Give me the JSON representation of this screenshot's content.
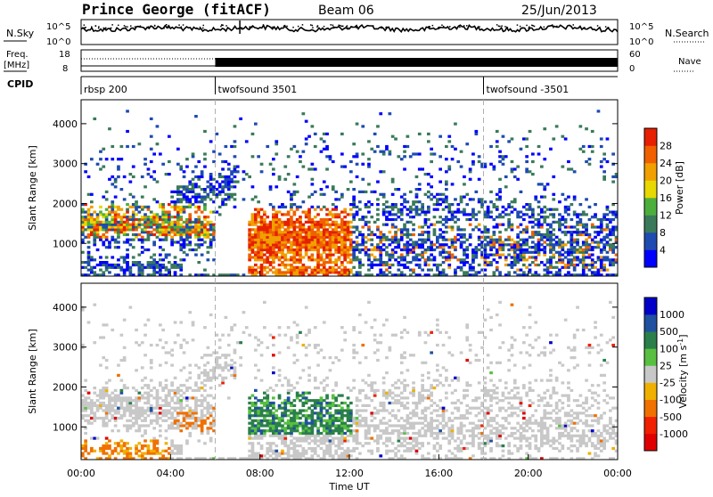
{
  "header": {
    "station": "Prince George (fitACF)",
    "beam": "Beam 06",
    "date": "25/Jun/2013"
  },
  "top_panels": {
    "nsky_label": "N.Sky",
    "nsky_ticks": [
      "10^5",
      "10^0"
    ],
    "nsearch_label": "N.Search",
    "nsearch_ticks": [
      "10^5",
      "10^0"
    ],
    "freq_label": "Freq.",
    "freq_unit": "[MHz]",
    "freq_ticks": [
      "18",
      "8"
    ],
    "nave_label": "Nave",
    "nave_ticks": [
      "60",
      "0"
    ],
    "cpid_label": "CPID",
    "cpid_segments": [
      {
        "label": "rbsp 200",
        "start_hour": 0
      },
      {
        "label": "twofsound 3501",
        "start_hour": 6
      },
      {
        "label": "twofsound -3501",
        "start_hour": 18
      }
    ]
  },
  "chart_data": [
    {
      "type": "heatmap",
      "title": "",
      "ylabel": "Slant Range [km]",
      "ylim": [
        180,
        4600
      ],
      "yticks": [
        "1000",
        "2000",
        "3000",
        "4000"
      ],
      "xlim_hours": [
        0,
        24
      ],
      "colorbar": {
        "label": "Power [dB]",
        "ticks": [
          "4",
          "8",
          "12",
          "16",
          "20",
          "24",
          "28"
        ],
        "colors": [
          "#0000ff",
          "#1e4bb0",
          "#3a7a5a",
          "#4caf3c",
          "#e6d800",
          "#f0a000",
          "#f06000",
          "#e62000"
        ]
      },
      "echo_bands": [
        {
          "hours": [
            0.0,
            5.5
          ],
          "range_km": [
            1100,
            2000
          ],
          "level": "high"
        },
        {
          "hours": [
            0.0,
            4.0
          ],
          "range_km": [
            300,
            600
          ],
          "level": "medium"
        },
        {
          "hours": [
            4.0,
            6.0
          ],
          "range_km": [
            1300,
            1600
          ],
          "level": "high"
        },
        {
          "hours": [
            8.0,
            12.0
          ],
          "range_km": [
            300,
            1800
          ],
          "level": "very high"
        },
        {
          "hours": [
            12.0,
            24.0
          ],
          "range_km": [
            300,
            1500
          ],
          "level": "low"
        }
      ]
    },
    {
      "type": "heatmap",
      "title": "",
      "ylabel": "Slant Range [km]",
      "ylim": [
        180,
        4600
      ],
      "yticks": [
        "1000",
        "2000",
        "3000",
        "4000"
      ],
      "xlim_hours": [
        0,
        24
      ],
      "colorbar": {
        "label": "Velocity [m s^-1]",
        "ticks": [
          "1000",
          "500",
          "100",
          "25",
          "-25",
          "-100",
          "-500",
          "-1000"
        ],
        "colors": [
          "#0000c8",
          "#2050a0",
          "#2a7f4a",
          "#58c040",
          "#c8c8c8",
          "#f0b000",
          "#f07000",
          "#f02000",
          "#e00000"
        ]
      },
      "echo_bands": [
        {
          "hours": [
            0.0,
            6.0
          ],
          "range_km": [
            1100,
            2000
          ],
          "velocity": "near zero"
        },
        {
          "hours": [
            8.0,
            12.0
          ],
          "range_km": [
            900,
            1800
          ],
          "velocity": "positive"
        },
        {
          "hours": [
            12.0,
            24.0
          ],
          "range_km": [
            300,
            1600
          ],
          "velocity": "near zero"
        }
      ]
    }
  ],
  "x_axis": {
    "ticks": [
      "00:00",
      "04:00",
      "08:00",
      "12:00",
      "16:00",
      "20:00",
      "00:00"
    ],
    "label": "Time UT"
  }
}
